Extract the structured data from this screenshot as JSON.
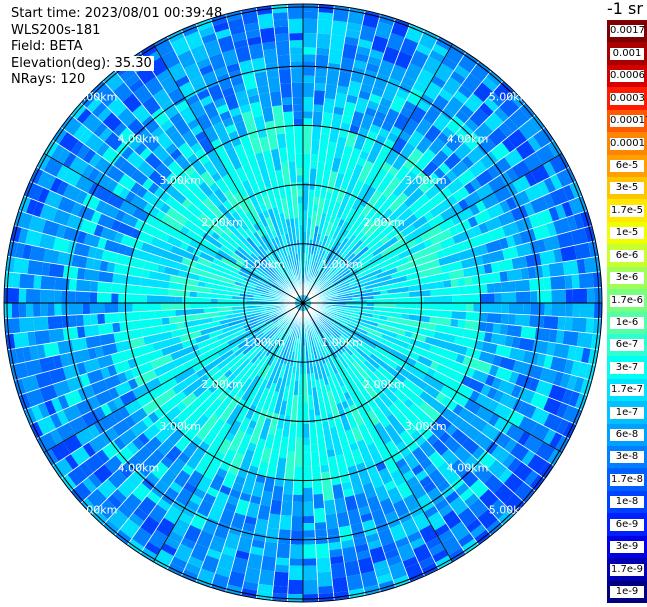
{
  "header": {
    "start_time": "Start time: 2023/08/01 00:39:48",
    "station": "WLS200s-181",
    "field": "Field: BETA",
    "elevation": "Elevation(deg): 35.30",
    "nrays": "NRays: 120"
  },
  "colorbar": {
    "unit": "-1 sr",
    "levels": [
      {
        "label": "0.0017",
        "color": "#7f0000"
      },
      {
        "label": "0.001",
        "color": "#a80000"
      },
      {
        "label": "0.0006",
        "color": "#d40000"
      },
      {
        "label": "0.0003",
        "color": "#ff1a00"
      },
      {
        "label": "0.00017",
        "color": "#ff5a00"
      },
      {
        "label": "0.0001",
        "color": "#ff8400"
      },
      {
        "label": "6e-5",
        "color": "#ffa000"
      },
      {
        "label": "3e-5",
        "color": "#ffc400"
      },
      {
        "label": "1.7e-5",
        "color": "#ffe800"
      },
      {
        "label": "1e-5",
        "color": "#f0ff00"
      },
      {
        "label": "6e-6",
        "color": "#c8ff2e"
      },
      {
        "label": "3e-6",
        "color": "#a0ff57"
      },
      {
        "label": "1.7e-6",
        "color": "#78ff80"
      },
      {
        "label": "1e-6",
        "color": "#55ffa8"
      },
      {
        "label": "6e-7",
        "color": "#2effd0"
      },
      {
        "label": "3e-7",
        "color": "#00fff0"
      },
      {
        "label": "1.7e-7",
        "color": "#00e0ff"
      },
      {
        "label": "1e-7",
        "color": "#00c0ff"
      },
      {
        "label": "6e-8",
        "color": "#00a0ff"
      },
      {
        "label": "3e-8",
        "color": "#0080ff"
      },
      {
        "label": "1.7e-8",
        "color": "#0060ff"
      },
      {
        "label": "1e-8",
        "color": "#0040ff"
      },
      {
        "label": "6e-9",
        "color": "#0020ff"
      },
      {
        "label": "3e-9",
        "color": "#0000e0"
      },
      {
        "label": "1.7e-9",
        "color": "#0000b0"
      },
      {
        "label": "1e-9",
        "color": "#000080"
      }
    ]
  },
  "chart_data": {
    "type": "heatmap",
    "projection": "polar (PPI)",
    "field": "BETA",
    "elevation_deg": 35.3,
    "n_rays": 120,
    "range_ring_labels": [
      "1.00km",
      "2.00km",
      "3.00km",
      "4.00km",
      "5.00km"
    ],
    "range_ring_values_km": [
      1,
      2,
      3,
      4,
      5
    ],
    "max_range_km": 5.05,
    "spoke_count": 12,
    "value_distribution": [
      {
        "range_km": [
          0,
          1.0
        ],
        "typical_value": "1e-7 to 3e-7",
        "dominant_color": "#00c0ff"
      },
      {
        "range_km": [
          1.0,
          3.0
        ],
        "typical_value": "3e-7 to 6e-7",
        "dominant_color": "#00fff0"
      },
      {
        "range_km": [
          3.0,
          5.05
        ],
        "typical_value": "3e-8 to 1.7e-7",
        "dominant_color": "#0080ff"
      }
    ]
  }
}
